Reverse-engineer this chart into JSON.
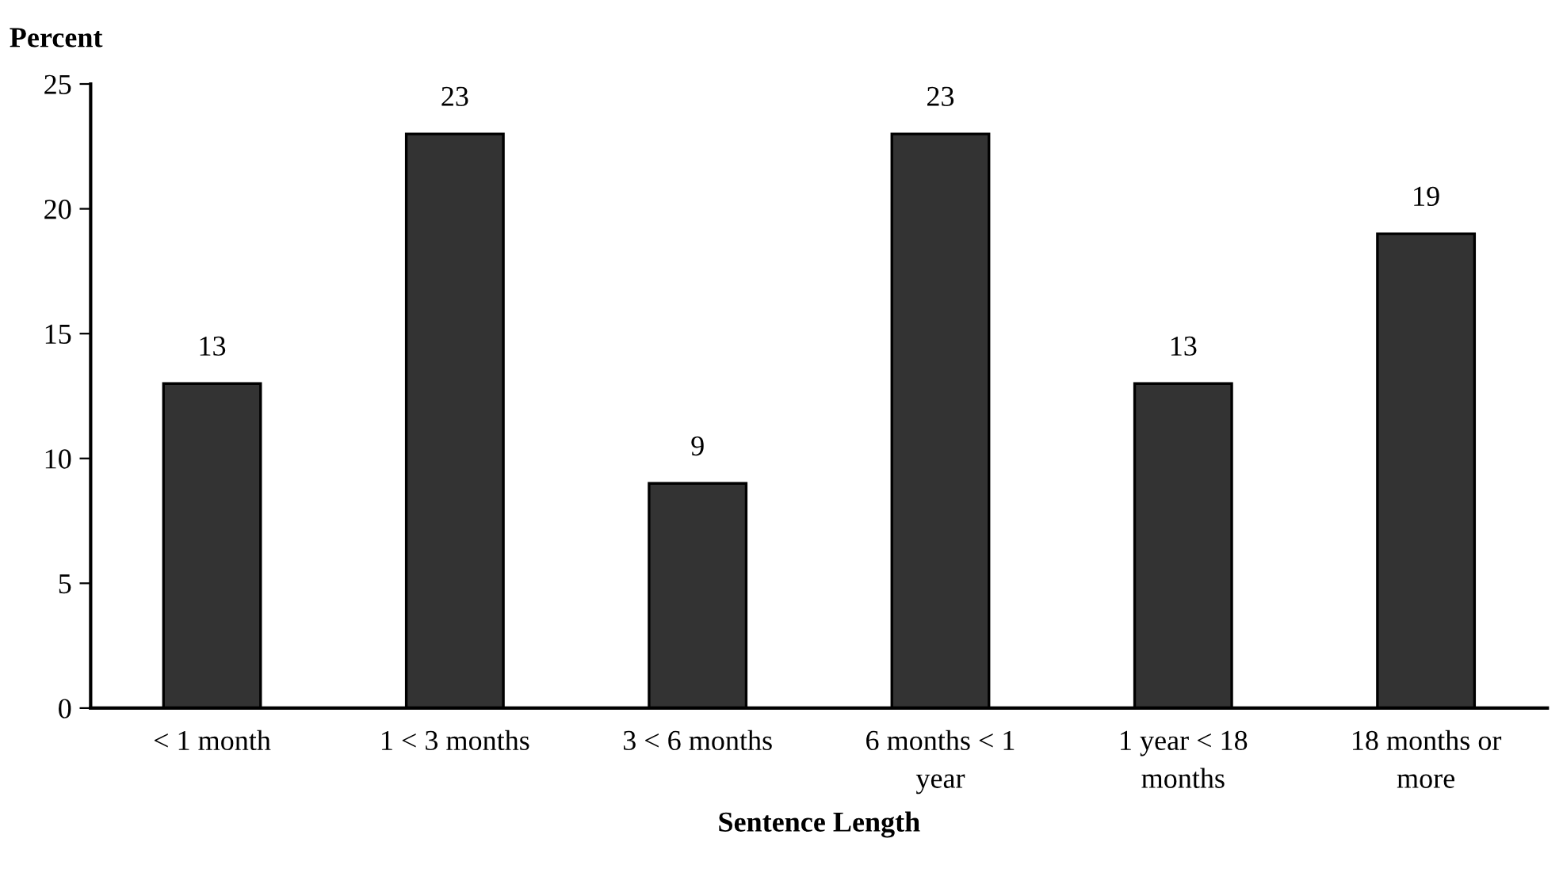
{
  "chart_data": {
    "type": "bar",
    "ylabel": "Percent",
    "xlabel": "Sentence Length",
    "categories": [
      "< 1 month",
      "1 < 3 months",
      "3 < 6 months",
      "6 months < 1\nyear",
      "1 year < 18\nmonths",
      "18 months or\nmore"
    ],
    "values": [
      13,
      23,
      9,
      23,
      13,
      19
    ],
    "color": "#333333",
    "ylim": [
      0,
      25
    ],
    "yticks": [
      0,
      5,
      10,
      15,
      20,
      25
    ],
    "grid": false,
    "data_labels": true
  }
}
